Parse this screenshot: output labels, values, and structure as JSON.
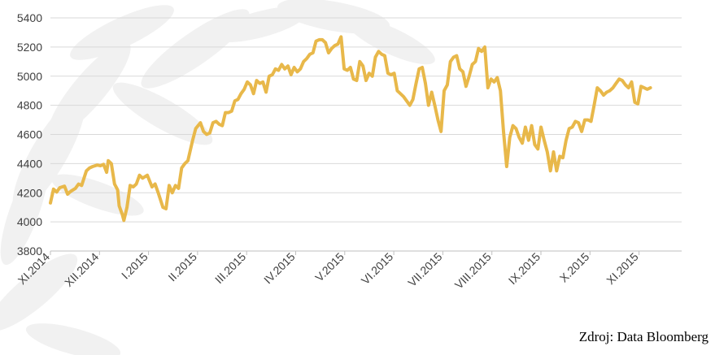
{
  "chart_data": {
    "type": "line",
    "title": "",
    "xlabel": "",
    "ylabel": "",
    "ylim": [
      3800,
      5400
    ],
    "yticks": [
      3800,
      4000,
      4200,
      4400,
      4600,
      4800,
      5000,
      5200,
      5400
    ],
    "grid": true,
    "legend": "none",
    "line_color": "#E8B84A",
    "x_tick_labels": [
      "XI.2014",
      "XII.2014",
      "I.2015",
      "II.2015",
      "III.2015",
      "IV.2015",
      "V.2015",
      "VI.2015",
      "VII.2015",
      "VIII.2015",
      "IX.2015",
      "X.2015",
      "XI.2015"
    ],
    "x_start": "2014-11-01",
    "x_end": "2015-12-10",
    "series": [
      {
        "name": "",
        "points": [
          [
            "2014-11-01",
            4130
          ],
          [
            "2014-11-03",
            4225
          ],
          [
            "2014-11-05",
            4205
          ],
          [
            "2014-11-07",
            4235
          ],
          [
            "2014-11-10",
            4245
          ],
          [
            "2014-11-12",
            4190
          ],
          [
            "2014-11-14",
            4210
          ],
          [
            "2014-11-17",
            4230
          ],
          [
            "2014-11-19",
            4260
          ],
          [
            "2014-11-21",
            4250
          ],
          [
            "2014-11-24",
            4350
          ],
          [
            "2014-11-26",
            4370
          ],
          [
            "2014-11-28",
            4380
          ],
          [
            "2014-12-01",
            4390
          ],
          [
            "2014-12-03",
            4385
          ],
          [
            "2014-12-05",
            4395
          ],
          [
            "2014-12-07",
            4340
          ],
          [
            "2014-12-08",
            4420
          ],
          [
            "2014-12-10",
            4400
          ],
          [
            "2014-12-12",
            4260
          ],
          [
            "2014-12-14",
            4220
          ],
          [
            "2014-12-15",
            4110
          ],
          [
            "2014-12-17",
            4050
          ],
          [
            "2014-12-18",
            4010
          ],
          [
            "2014-12-20",
            4100
          ],
          [
            "2014-12-22",
            4250
          ],
          [
            "2014-12-24",
            4240
          ],
          [
            "2014-12-26",
            4260
          ],
          [
            "2014-12-28",
            4320
          ],
          [
            "2014-12-30",
            4300
          ],
          [
            "2015-01-02",
            4320
          ],
          [
            "2015-01-05",
            4240
          ],
          [
            "2015-01-07",
            4260
          ],
          [
            "2015-01-09",
            4200
          ],
          [
            "2015-01-12",
            4100
          ],
          [
            "2015-01-14",
            4090
          ],
          [
            "2015-01-16",
            4250
          ],
          [
            "2015-01-18",
            4200
          ],
          [
            "2015-01-20",
            4250
          ],
          [
            "2015-01-22",
            4230
          ],
          [
            "2015-01-24",
            4370
          ],
          [
            "2015-01-26",
            4400
          ],
          [
            "2015-01-28",
            4420
          ],
          [
            "2015-01-31",
            4560
          ],
          [
            "2015-02-02",
            4640
          ],
          [
            "2015-02-05",
            4680
          ],
          [
            "2015-02-07",
            4620
          ],
          [
            "2015-02-09",
            4600
          ],
          [
            "2015-02-11",
            4610
          ],
          [
            "2015-02-13",
            4680
          ],
          [
            "2015-02-15",
            4690
          ],
          [
            "2015-02-17",
            4670
          ],
          [
            "2015-02-19",
            4660
          ],
          [
            "2015-02-21",
            4750
          ],
          [
            "2015-02-23",
            4750
          ],
          [
            "2015-02-25",
            4760
          ],
          [
            "2015-02-27",
            4830
          ],
          [
            "2015-03-01",
            4840
          ],
          [
            "2015-03-03",
            4880
          ],
          [
            "2015-03-05",
            4910
          ],
          [
            "2015-03-07",
            4960
          ],
          [
            "2015-03-09",
            4940
          ],
          [
            "2015-03-11",
            4880
          ],
          [
            "2015-03-13",
            4970
          ],
          [
            "2015-03-15",
            4950
          ],
          [
            "2015-03-17",
            4960
          ],
          [
            "2015-03-19",
            4890
          ],
          [
            "2015-03-21",
            5000
          ],
          [
            "2015-03-23",
            5010
          ],
          [
            "2015-03-25",
            5050
          ],
          [
            "2015-03-27",
            5040
          ],
          [
            "2015-03-29",
            5080
          ],
          [
            "2015-03-31",
            5050
          ],
          [
            "2015-04-02",
            5070
          ],
          [
            "2015-04-04",
            5010
          ],
          [
            "2015-04-06",
            5060
          ],
          [
            "2015-04-08",
            5030
          ],
          [
            "2015-04-10",
            5050
          ],
          [
            "2015-04-12",
            5100
          ],
          [
            "2015-04-14",
            5120
          ],
          [
            "2015-04-16",
            5150
          ],
          [
            "2015-04-18",
            5160
          ],
          [
            "2015-04-20",
            5240
          ],
          [
            "2015-04-22",
            5250
          ],
          [
            "2015-04-24",
            5250
          ],
          [
            "2015-04-26",
            5230
          ],
          [
            "2015-04-28",
            5160
          ],
          [
            "2015-04-30",
            5190
          ],
          [
            "2015-05-02",
            5210
          ],
          [
            "2015-05-04",
            5220
          ],
          [
            "2015-05-06",
            5270
          ],
          [
            "2015-05-08",
            5050
          ],
          [
            "2015-05-10",
            5040
          ],
          [
            "2015-05-12",
            5060
          ],
          [
            "2015-05-14",
            4980
          ],
          [
            "2015-05-16",
            4970
          ],
          [
            "2015-05-18",
            5100
          ],
          [
            "2015-05-20",
            5070
          ],
          [
            "2015-05-22",
            4970
          ],
          [
            "2015-05-24",
            5020
          ],
          [
            "2015-05-26",
            5000
          ],
          [
            "2015-05-28",
            5130
          ],
          [
            "2015-05-30",
            5170
          ],
          [
            "2015-06-01",
            5150
          ],
          [
            "2015-06-03",
            5140
          ],
          [
            "2015-06-05",
            5020
          ],
          [
            "2015-06-07",
            5010
          ],
          [
            "2015-06-09",
            5020
          ],
          [
            "2015-06-11",
            4900
          ],
          [
            "2015-06-13",
            4880
          ],
          [
            "2015-06-15",
            4860
          ],
          [
            "2015-06-17",
            4830
          ],
          [
            "2015-06-19",
            4800
          ],
          [
            "2015-06-21",
            4840
          ],
          [
            "2015-06-23",
            4950
          ],
          [
            "2015-06-25",
            5050
          ],
          [
            "2015-06-27",
            5060
          ],
          [
            "2015-06-29",
            4950
          ],
          [
            "2015-07-01",
            4800
          ],
          [
            "2015-07-03",
            4890
          ],
          [
            "2015-07-05",
            4800
          ],
          [
            "2015-07-07",
            4700
          ],
          [
            "2015-07-09",
            4620
          ],
          [
            "2015-07-11",
            4900
          ],
          [
            "2015-07-13",
            4940
          ],
          [
            "2015-07-15",
            5100
          ],
          [
            "2015-07-17",
            5130
          ],
          [
            "2015-07-19",
            5140
          ],
          [
            "2015-07-21",
            5050
          ],
          [
            "2015-07-23",
            5030
          ],
          [
            "2015-07-25",
            4930
          ],
          [
            "2015-07-27",
            5000
          ],
          [
            "2015-07-29",
            5080
          ],
          [
            "2015-07-31",
            5100
          ],
          [
            "2015-08-02",
            5190
          ],
          [
            "2015-08-04",
            5170
          ],
          [
            "2015-08-06",
            5200
          ],
          [
            "2015-08-08",
            4920
          ],
          [
            "2015-08-10",
            4980
          ],
          [
            "2015-08-12",
            4960
          ],
          [
            "2015-08-14",
            4990
          ],
          [
            "2015-08-16",
            4900
          ],
          [
            "2015-08-18",
            4620
          ],
          [
            "2015-08-20",
            4380
          ],
          [
            "2015-08-22",
            4580
          ],
          [
            "2015-08-24",
            4660
          ],
          [
            "2015-08-26",
            4640
          ],
          [
            "2015-08-28",
            4580
          ],
          [
            "2015-08-30",
            4540
          ],
          [
            "2015-09-01",
            4650
          ],
          [
            "2015-09-03",
            4560
          ],
          [
            "2015-09-05",
            4660
          ],
          [
            "2015-09-07",
            4530
          ],
          [
            "2015-09-09",
            4500
          ],
          [
            "2015-09-11",
            4650
          ],
          [
            "2015-09-13",
            4560
          ],
          [
            "2015-09-15",
            4480
          ],
          [
            "2015-09-17",
            4350
          ],
          [
            "2015-09-19",
            4480
          ],
          [
            "2015-09-21",
            4350
          ],
          [
            "2015-09-23",
            4450
          ],
          [
            "2015-09-25",
            4440
          ],
          [
            "2015-09-27",
            4560
          ],
          [
            "2015-09-29",
            4640
          ],
          [
            "2015-10-01",
            4650
          ],
          [
            "2015-10-03",
            4690
          ],
          [
            "2015-10-05",
            4680
          ],
          [
            "2015-10-07",
            4620
          ],
          [
            "2015-10-09",
            4700
          ],
          [
            "2015-10-11",
            4700
          ],
          [
            "2015-10-13",
            4690
          ],
          [
            "2015-10-15",
            4800
          ],
          [
            "2015-10-17",
            4920
          ],
          [
            "2015-10-19",
            4900
          ],
          [
            "2015-10-21",
            4870
          ],
          [
            "2015-10-23",
            4890
          ],
          [
            "2015-10-25",
            4900
          ],
          [
            "2015-10-27",
            4920
          ],
          [
            "2015-10-29",
            4950
          ],
          [
            "2015-10-31",
            4980
          ],
          [
            "2015-11-02",
            4970
          ],
          [
            "2015-11-04",
            4940
          ],
          [
            "2015-11-06",
            4920
          ],
          [
            "2015-11-08",
            4960
          ],
          [
            "2015-11-10",
            4820
          ],
          [
            "2015-11-12",
            4810
          ],
          [
            "2015-11-14",
            4930
          ],
          [
            "2015-11-16",
            4920
          ],
          [
            "2015-11-18",
            4910
          ],
          [
            "2015-11-20",
            4920
          ]
        ]
      }
    ]
  },
  "source": "Zdroj: Data Bloomberg"
}
